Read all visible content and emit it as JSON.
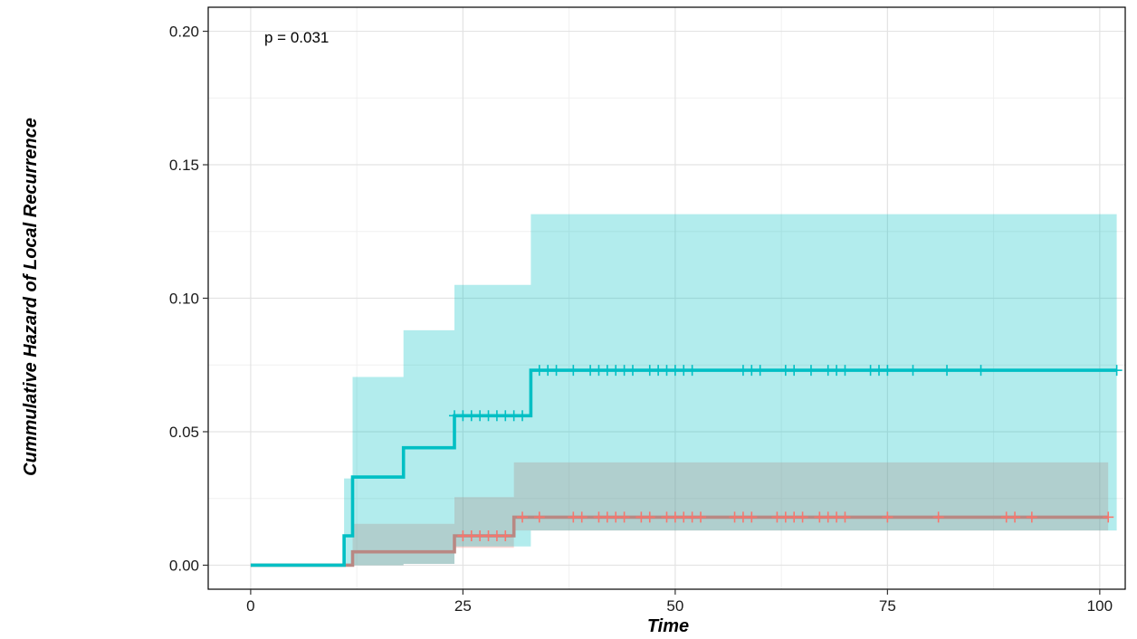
{
  "chart_data": {
    "type": "line",
    "subtype": "cumulative-hazard-step",
    "title": "",
    "xlabel": "Time",
    "ylabel": "Cummulative Hazard of Local Recurrence",
    "xlim": [
      -5,
      103
    ],
    "ylim": [
      -0.009,
      0.209
    ],
    "x_ticks": [
      0,
      25,
      50,
      75,
      100
    ],
    "y_ticks": [
      0.0,
      0.05,
      0.1,
      0.15,
      0.2
    ],
    "x_tick_labels": [
      "0",
      "25",
      "50",
      "75",
      "100"
    ],
    "y_tick_labels": [
      "0.00",
      "0.05",
      "0.10",
      "0.15",
      "0.20"
    ],
    "grid": true,
    "legend": "none",
    "annotation": "p = 0.031",
    "series": [
      {
        "color": "#f8766d",
        "line_color": "#b98883",
        "band_color": "#f8766d",
        "steps": [
          {
            "x": 0,
            "y": 0
          },
          {
            "x": 12,
            "y": 0.005
          },
          {
            "x": 24,
            "y": 0.011
          },
          {
            "x": 31,
            "y": 0.018
          },
          {
            "x": 101,
            "y": 0.018
          }
        ],
        "band": [
          {
            "x": 12,
            "lower": 0.0,
            "upper": 0.0155
          },
          {
            "x": 18,
            "lower": 0.0005,
            "upper": 0.0155
          },
          {
            "x": 24,
            "lower": 0.0065,
            "upper": 0.0255
          },
          {
            "x": 31,
            "lower": 0.013,
            "upper": 0.0385
          },
          {
            "x": 101,
            "lower": 0.013,
            "upper": 0.0385
          }
        ],
        "censor_x": [
          25,
          26,
          27,
          28,
          29,
          30,
          32,
          34,
          38,
          39,
          41,
          42,
          43,
          44,
          46,
          47,
          49,
          50,
          51,
          52,
          53,
          57,
          58,
          59,
          62,
          63,
          64,
          65,
          67,
          68,
          69,
          70,
          75,
          81,
          89,
          90,
          92,
          101
        ]
      },
      {
        "color": "#00bfc4",
        "line_color": "#00bfc4",
        "band_color": "#00bfc4",
        "steps": [
          {
            "x": 0,
            "y": 0
          },
          {
            "x": 11,
            "y": 0.011
          },
          {
            "x": 12,
            "y": 0.033
          },
          {
            "x": 18,
            "y": 0.044
          },
          {
            "x": 24,
            "y": 0.056
          },
          {
            "x": 33,
            "y": 0.073
          },
          {
            "x": 102,
            "y": 0.073
          }
        ],
        "band": [
          {
            "x": 11,
            "lower": 0.0,
            "upper": 0.0325
          },
          {
            "x": 12,
            "lower": 0.0,
            "upper": 0.0705
          },
          {
            "x": 18,
            "lower": 0.0005,
            "upper": 0.088
          },
          {
            "x": 24,
            "lower": 0.007,
            "upper": 0.105
          },
          {
            "x": 33,
            "lower": 0.013,
            "upper": 0.1315
          },
          {
            "x": 102,
            "lower": 0.013,
            "upper": 0.1315
          }
        ],
        "censor_x": [
          24,
          25,
          26,
          27,
          28,
          29,
          30,
          31,
          32,
          34,
          35,
          36,
          38,
          40,
          41,
          42,
          43,
          44,
          45,
          47,
          48,
          49,
          50,
          51,
          52,
          58,
          59,
          60,
          63,
          64,
          66,
          68,
          69,
          70,
          73,
          74,
          75,
          78,
          82,
          86,
          102
        ]
      }
    ]
  }
}
